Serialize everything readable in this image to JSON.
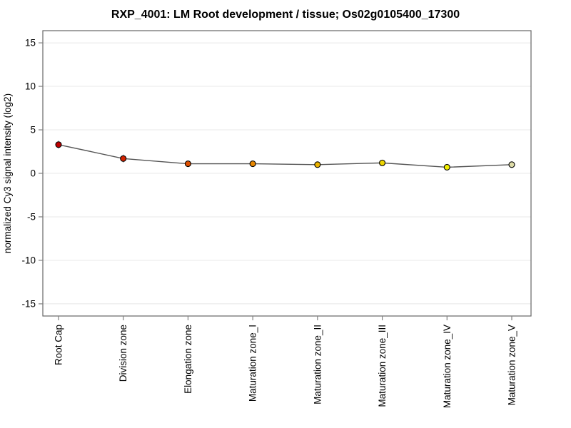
{
  "title": "RXP_4001: LM Root development / tissue; Os02g0105400_17300",
  "chart_data": {
    "type": "line",
    "title": "RXP_4001: LM Root development / tissue; Os02g0105400_17300",
    "xlabel": "",
    "ylabel": "normalized Cy3 signal intensity (log2)",
    "categories": [
      "Root Cap",
      "Division zone",
      "Elongation zone",
      "Maturation zone_I",
      "Maturation zone_II",
      "Maturation zone_III",
      "Maturation zone_IV",
      "Maturation zone_V"
    ],
    "values": [
      3.3,
      1.7,
      1.1,
      1.1,
      1.0,
      1.2,
      0.7,
      1.0
    ],
    "errors": [
      0.45,
      0.45,
      0.2,
      0.3,
      0.2,
      0.15,
      0.3,
      0.15
    ],
    "point_colors": [
      "#BE0000",
      "#D32300",
      "#DF5000",
      "#E88700",
      "#EBB300",
      "#EDD500",
      "#F2EE00",
      "#DEDCA8"
    ],
    "ylim": [
      -16.4,
      16.4
    ],
    "yticks": [
      -15,
      -10,
      -5,
      0,
      5,
      10,
      15
    ],
    "grid": true,
    "legend": "none",
    "line_color": "#555555",
    "marker_outline": "#000000",
    "error_bar_color": "#888888",
    "grid_color": "#E8E8E8",
    "axis_color": "#666666",
    "tick_color": "#808080",
    "background": "#FFFFFF"
  }
}
